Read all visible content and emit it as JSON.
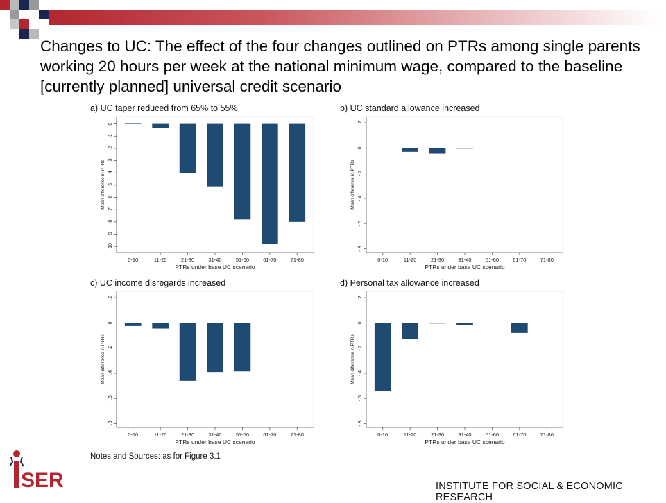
{
  "slide": {
    "title": "Changes to UC: The effect of the four changes outlined on PTRs among single parents working 20 hours per week at the national minimum wage, compared to the baseline [currently planned] universal credit scenario",
    "notes": "Notes and Sources: as for Figure 3.1",
    "org_name": "INSTITUTE FOR SOCIAL & ECONOMIC RESEARCH",
    "logo_text": "iSER"
  },
  "colors": {
    "bar": "#1f4a72",
    "accent_red": "#b3262f",
    "navy": "#1a2550",
    "grey": "#9a9a9a"
  },
  "chart_data": [
    {
      "type": "bar",
      "title": "a) UC taper reduced from 65% to 55%",
      "xlabel": "PTRs under base UC scenario",
      "ylabel": "Mean difference in PTRs",
      "categories": [
        "0-10",
        "11-20",
        "21-30",
        "31-40",
        "51-60",
        "61-70",
        "71-80"
      ],
      "values": [
        0.05,
        -0.35,
        -4.0,
        -5.1,
        -7.8,
        -9.8,
        -8.0
      ],
      "ylim": [
        -10.5,
        0.6
      ],
      "yticks": [
        0,
        -1,
        -2,
        -3,
        -4,
        -5,
        -6,
        -7,
        -8,
        -9,
        -10
      ]
    },
    {
      "type": "bar",
      "title": "b) UC standard allowance increased",
      "xlabel": "PTRs under base UC scenario",
      "ylabel": "Mean difference in PTRs",
      "categories": [
        "0-10",
        "11-20",
        "21-30",
        "31-40",
        "51-60",
        "61-70",
        "71-80"
      ],
      "values": [
        0,
        -0.03,
        -0.045,
        -0.005,
        0,
        0,
        0
      ],
      "ylim": [
        -0.83,
        0.25
      ],
      "yticks": [
        0.2,
        0,
        -0.2,
        -0.4,
        -0.6,
        -0.8
      ],
      "yticklabels": [
        ".2",
        "0",
        "-.2",
        "-.4",
        "-.6",
        "-.8"
      ]
    },
    {
      "type": "bar",
      "title": "c) UC income disregards increased",
      "xlabel": "PTRs under base UC scenario",
      "ylabel": "Mean difference in PTRs",
      "categories": [
        "0-10",
        "11-20",
        "21-30",
        "31-40",
        "51-60",
        "61-70",
        "71-80"
      ],
      "values": [
        -0.025,
        -0.045,
        -0.46,
        -0.39,
        -0.385,
        0,
        0
      ],
      "ylim": [
        -0.83,
        0.25
      ],
      "yticks": [
        0.2,
        0,
        -0.2,
        -0.4,
        -0.6,
        -0.8
      ],
      "yticklabels": [
        ".2",
        "0",
        "-.2",
        "-.4",
        "-.6",
        "-.8"
      ]
    },
    {
      "type": "bar",
      "title": "d) Personal tax allowance increased",
      "xlabel": "PTRs under base UC scenario",
      "ylabel": "Mean difference in PTRs",
      "categories": [
        "0-10",
        "11-20",
        "21-30",
        "31-40",
        "51-60",
        "61-70",
        "71-80"
      ],
      "values": [
        -0.54,
        -0.13,
        -0.005,
        -0.02,
        0,
        -0.08,
        0
      ],
      "ylim": [
        -0.83,
        0.25
      ],
      "yticks": [
        0.2,
        0,
        -0.2,
        -0.4,
        -0.6,
        -0.8
      ],
      "yticklabels": [
        ".2",
        "0",
        "-.2",
        "-.4",
        "-.6",
        "-.8"
      ]
    }
  ]
}
